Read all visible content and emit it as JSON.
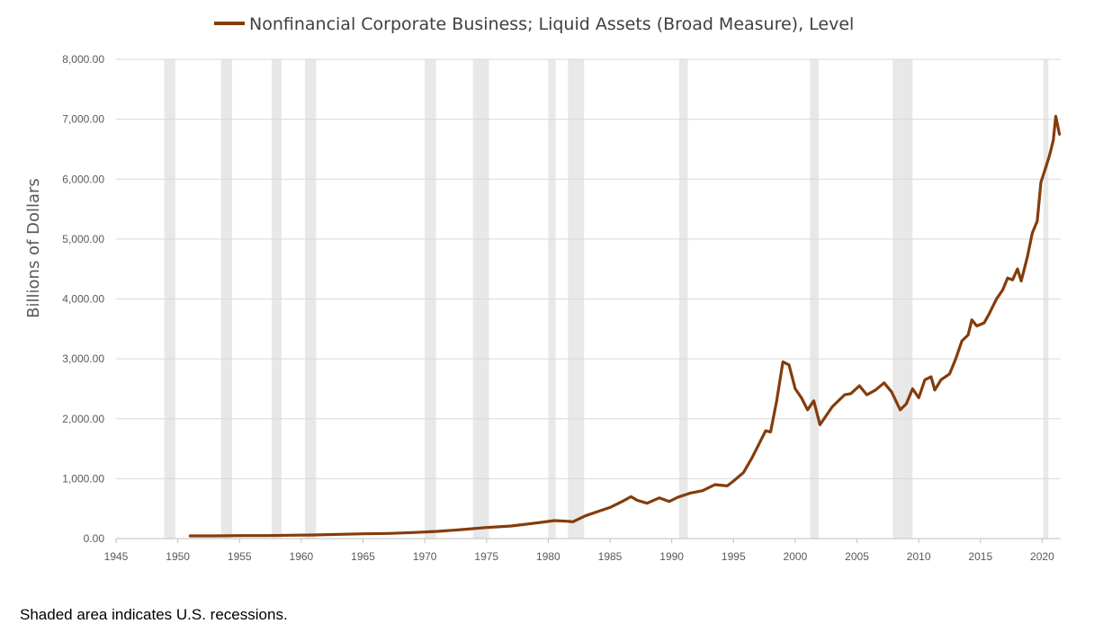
{
  "chart_data": {
    "type": "line",
    "title": "",
    "xlabel": "",
    "ylabel": "Billions of Dollars",
    "xlim": [
      1945,
      2021.5
    ],
    "ylim": [
      0,
      8000
    ],
    "x_ticks": [
      1945,
      1950,
      1955,
      1960,
      1965,
      1970,
      1975,
      1980,
      1985,
      1990,
      1995,
      2000,
      2005,
      2010,
      2015,
      2020
    ],
    "y_ticks": [
      "0.00",
      "1,000.00",
      "2,000.00",
      "3,000.00",
      "4,000.00",
      "5,000.00",
      "6,000.00",
      "7,000.00",
      "8,000.00"
    ],
    "grid": "horizontal",
    "legend_position": "top",
    "colors": {
      "series": "#843c0c",
      "recession": "#e8e8e8",
      "grid": "#d9d9d9"
    },
    "recessions": [
      [
        1948.9,
        1949.8
      ],
      [
        1953.5,
        1954.4
      ],
      [
        1957.6,
        1958.4
      ],
      [
        1960.3,
        1961.2
      ],
      [
        1970.0,
        1970.9
      ],
      [
        1973.9,
        1975.2
      ],
      [
        1980.0,
        1980.6
      ],
      [
        1981.6,
        1982.9
      ],
      [
        1990.6,
        1991.3
      ],
      [
        2001.2,
        2001.9
      ],
      [
        2007.9,
        2009.5
      ],
      [
        2020.1,
        2020.5
      ]
    ],
    "series": [
      {
        "name": "Nonfinancial Corporate Business; Liquid Assets (Broad Measure), Level",
        "points": [
          [
            1951.0,
            45
          ],
          [
            1953.0,
            45
          ],
          [
            1955.0,
            50
          ],
          [
            1957.0,
            50
          ],
          [
            1959.0,
            55
          ],
          [
            1961.0,
            60
          ],
          [
            1963.0,
            70
          ],
          [
            1965.0,
            80
          ],
          [
            1967.0,
            85
          ],
          [
            1969.0,
            100
          ],
          [
            1971.0,
            120
          ],
          [
            1973.0,
            150
          ],
          [
            1975.0,
            185
          ],
          [
            1977.0,
            210
          ],
          [
            1979.0,
            260
          ],
          [
            1980.5,
            300
          ],
          [
            1981.5,
            290
          ],
          [
            1982.0,
            280
          ],
          [
            1983.0,
            380
          ],
          [
            1984.0,
            450
          ],
          [
            1985.0,
            520
          ],
          [
            1986.0,
            620
          ],
          [
            1986.7,
            700
          ],
          [
            1987.2,
            640
          ],
          [
            1988.0,
            590
          ],
          [
            1989.0,
            680
          ],
          [
            1989.8,
            620
          ],
          [
            1990.5,
            690
          ],
          [
            1991.5,
            760
          ],
          [
            1992.5,
            800
          ],
          [
            1993.5,
            900
          ],
          [
            1994.5,
            880
          ],
          [
            1995.0,
            960
          ],
          [
            1995.8,
            1100
          ],
          [
            1996.5,
            1350
          ],
          [
            1997.0,
            1550
          ],
          [
            1997.6,
            1800
          ],
          [
            1998.0,
            1780
          ],
          [
            1998.5,
            2300
          ],
          [
            1999.0,
            2950
          ],
          [
            1999.5,
            2900
          ],
          [
            2000.0,
            2500
          ],
          [
            2000.5,
            2350
          ],
          [
            2001.0,
            2150
          ],
          [
            2001.5,
            2300
          ],
          [
            2002.0,
            1900
          ],
          [
            2003.0,
            2200
          ],
          [
            2004.0,
            2400
          ],
          [
            2004.5,
            2420
          ],
          [
            2005.2,
            2550
          ],
          [
            2005.8,
            2400
          ],
          [
            2006.5,
            2480
          ],
          [
            2007.2,
            2600
          ],
          [
            2007.8,
            2450
          ],
          [
            2008.5,
            2150
          ],
          [
            2009.0,
            2250
          ],
          [
            2009.5,
            2500
          ],
          [
            2010.0,
            2350
          ],
          [
            2010.5,
            2650
          ],
          [
            2011.0,
            2700
          ],
          [
            2011.3,
            2480
          ],
          [
            2011.8,
            2650
          ],
          [
            2012.5,
            2750
          ],
          [
            2013.0,
            3000
          ],
          [
            2013.5,
            3300
          ],
          [
            2014.0,
            3400
          ],
          [
            2014.3,
            3650
          ],
          [
            2014.7,
            3550
          ],
          [
            2015.3,
            3600
          ],
          [
            2015.7,
            3750
          ],
          [
            2016.3,
            4000
          ],
          [
            2016.8,
            4150
          ],
          [
            2017.2,
            4350
          ],
          [
            2017.6,
            4320
          ],
          [
            2018.0,
            4500
          ],
          [
            2018.3,
            4300
          ],
          [
            2018.8,
            4700
          ],
          [
            2019.2,
            5100
          ],
          [
            2019.6,
            5300
          ],
          [
            2019.9,
            5950
          ],
          [
            2020.3,
            6200
          ],
          [
            2020.6,
            6400
          ],
          [
            2020.9,
            6650
          ],
          [
            2021.1,
            7050
          ],
          [
            2021.4,
            6750
          ]
        ]
      }
    ],
    "footnote": "Shaded area indicates U.S. recessions."
  }
}
